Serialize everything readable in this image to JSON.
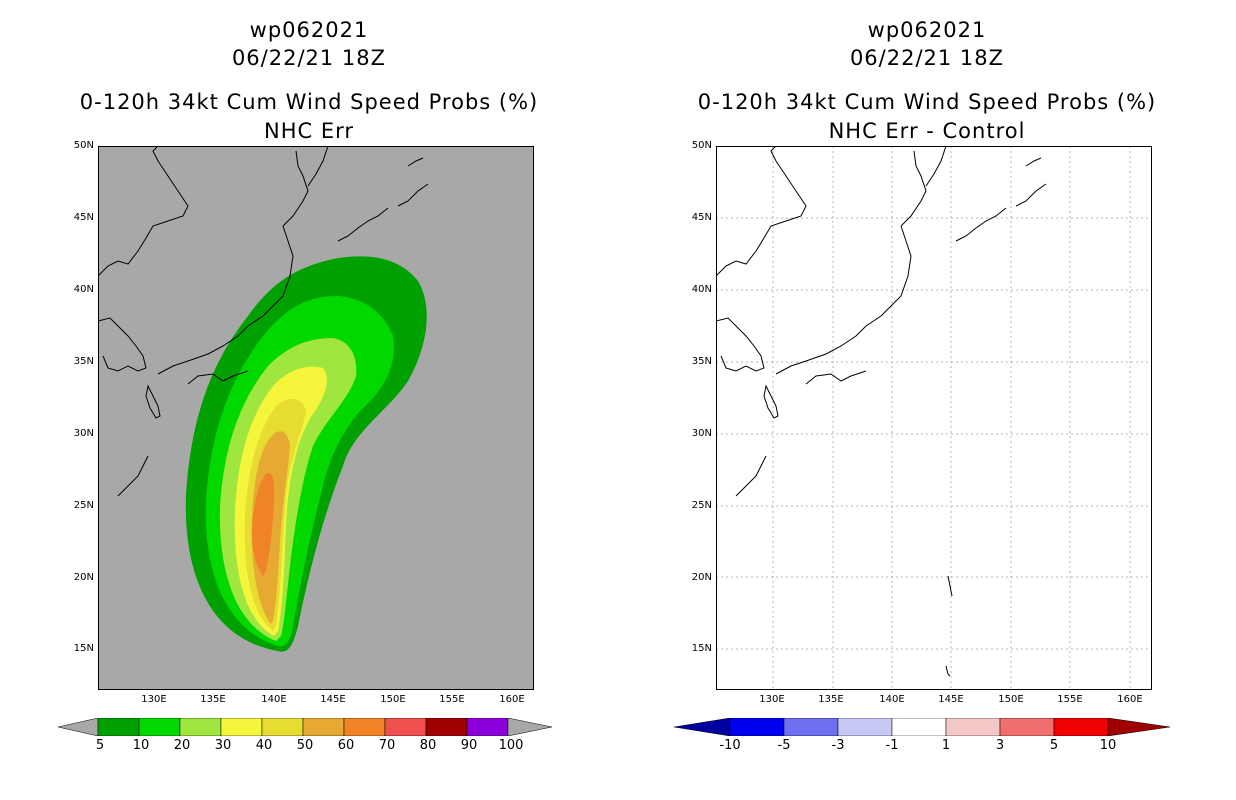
{
  "left": {
    "title_storm": "wp062021",
    "title_date": "06/22/21 18Z",
    "title_product": "0-120h 34kt Cum Wind Speed Probs (%)",
    "title_sub": "NHC Err",
    "background_color": "#a8a8a8",
    "lat_labels": [
      "50N",
      "45N",
      "40N",
      "35N",
      "30N",
      "25N",
      "20N",
      "15N"
    ],
    "lon_labels": [
      "130E",
      "135E",
      "140E",
      "145E",
      "150E",
      "155E",
      "160E"
    ],
    "colorbar_labels": [
      "5",
      "10",
      "20",
      "30",
      "40",
      "50",
      "60",
      "70",
      "80",
      "90",
      "100"
    ],
    "colorbar_colors": [
      "#00a000",
      "#00d800",
      "#a0e640",
      "#f5f53c",
      "#e6dc32",
      "#e6aa32",
      "#f08228",
      "#f05050",
      "#a00000",
      "#8c00dc"
    ]
  },
  "right": {
    "title_storm": "wp062021",
    "title_date": "06/22/21 18Z",
    "title_product": "0-120h 34kt Cum Wind Speed Probs (%)",
    "title_sub": "NHC Err - Control",
    "background_color": "#ffffff",
    "lat_labels": [
      "50N",
      "45N",
      "40N",
      "35N",
      "30N",
      "25N",
      "20N",
      "15N"
    ],
    "lon_labels": [
      "130E",
      "135E",
      "140E",
      "145E",
      "150E",
      "155E",
      "160E"
    ],
    "colorbar_labels": [
      "-10",
      "-5",
      "-3",
      "-1",
      "1",
      "3",
      "5",
      "10"
    ],
    "colorbar_colors": [
      "#0000a0",
      "#0000f0",
      "#6e6ef0",
      "#c8c8f5",
      "#ffffff",
      "#f5c8c8",
      "#f06e6e",
      "#f00000",
      "#a00000"
    ]
  }
}
